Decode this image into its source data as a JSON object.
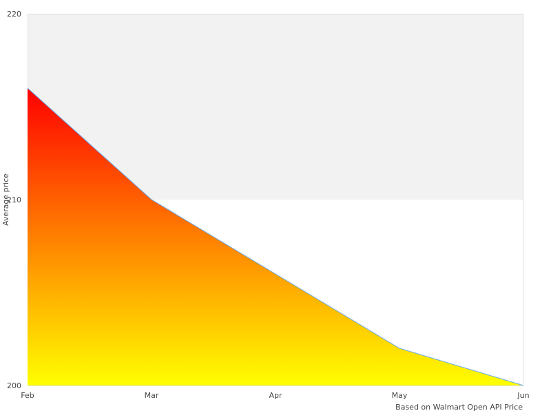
{
  "chart_data": {
    "type": "area",
    "categories": [
      "Feb",
      "Mar",
      "Apr",
      "May",
      "Jun"
    ],
    "values": [
      216,
      210,
      206,
      202,
      200
    ],
    "ylabel": "Average price",
    "xlabel": "Based on Walmart Open API Price",
    "ylim": [
      200,
      220
    ],
    "yticks": [
      "200",
      "210",
      "220"
    ],
    "grid": "alternating bands",
    "colors": {
      "fill_top": "#ff0000",
      "fill_bottom": "#ffff00",
      "line": "#66aaee",
      "band": "#f2f2f2",
      "border": "#dddddd"
    }
  }
}
